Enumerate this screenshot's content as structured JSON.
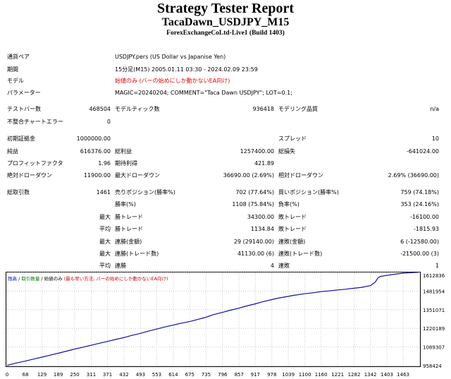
{
  "header": {
    "title": "Strategy Tester Report",
    "subtitle": "TacaDawn_USDJPY_M15",
    "server": "ForexExchangeCoLtd-Live1 (Build 1403)"
  },
  "settings": {
    "pair_label": "通貨ペア",
    "pair_value": "USDJPY.pers (US Dollar vs Japanise Yen)",
    "period_label": "期間",
    "period_value": "15分足(M15) 2005.01.11 03:30 - 2024.02.09 23:59",
    "model_label": "モデル",
    "model_value": "始値のみ (バーの始めにしか動かないEA向け)",
    "params_label": "パラメーター",
    "params_value": "MAGIC=20240204; COMMENT=\"Taca Dawn USDJPY\"; LOT=0.1;"
  },
  "stats": {
    "bars_label": "テストバー数",
    "bars_value": "468504",
    "ticks_label": "モデルティック数",
    "ticks_value": "936418",
    "quality_label": "モデリング品質",
    "quality_value": "n/a",
    "mismatch_label": "不整合チャートエラー",
    "mismatch_value": "0",
    "deposit_label": "初期証拠金",
    "deposit_value": "1000000.00",
    "spread_label": "スプレッド",
    "spread_value": "10",
    "net_label": "純益",
    "net_value": "616376.00",
    "gross_profit_label": "総利益",
    "gross_profit_value": "1257400.00",
    "gross_loss_label": "総損失",
    "gross_loss_value": "-641024.00",
    "pf_label": "プロフィットファクタ",
    "pf_value": "1.96",
    "expected_label": "期待利得",
    "expected_value": "421.89",
    "abs_dd_label": "絶対ドローダウン",
    "abs_dd_value": "11900.00",
    "max_dd_label": "最大ドローダウン",
    "max_dd_value": "36690.00 (2.69%)",
    "rel_dd_label": "相対ドローダウン",
    "rel_dd_value": "2.69% (36690.00)",
    "trades_label": "総取引数",
    "trades_value": "1461",
    "short_label": "売りポジション(勝率%)",
    "short_value": "702 (77.64%)",
    "long_label": "買いポジション(勝率%)",
    "long_value": "759 (74.18%)",
    "win_rate_label": "勝率(%)",
    "win_rate_value": "1108 (75.84%)",
    "loss_rate_label": "負率(%)",
    "loss_rate_value": "353 (24.16%)",
    "max1": "最大",
    "largest_win_label": "勝トレード",
    "largest_win_value": "34300.00",
    "largest_loss_label": "敗トレード",
    "largest_loss_value": "-16100.00",
    "avg1": "平均",
    "avg_win_label": "勝トレード",
    "avg_win_value": "1134.84",
    "avg_loss_label": "敗トレード",
    "avg_loss_value": "-1815.93",
    "max2": "最大",
    "consec_wins_label": "連勝(金額)",
    "consec_wins_value": "29 (29140.00)",
    "consec_losses_label": "連敗(金額)",
    "consec_losses_value": "6 (-12580.00)",
    "max3": "最大",
    "consec_profit_label": "連勝(トレード数)",
    "consec_profit_value": "41130.00 (6)",
    "consec_loss_label": "連敗(トレード数)",
    "consec_loss_value": "-21500.00 (3)",
    "avg2": "平均",
    "avg_consec_wins_label": "連勝",
    "avg_consec_wins_value": "4",
    "avg_consec_losses_label": "連敗",
    "avg_consec_losses_value": "1"
  },
  "chart_legend": {
    "balance": "残高",
    "sep1": " / ",
    "lot": "取引数量",
    "sep2": " / ",
    "mode": "始値のみ",
    "note": " (最も早い方法, バーの始めにしか動かないEA向け)",
    "balance_color": "#0000cc",
    "lot_color": "#008000",
    "note_color": "#cc0000"
  },
  "chart_data": {
    "type": "line",
    "x_ticks": [
      0,
      68,
      129,
      189,
      250,
      311,
      371,
      432,
      493,
      553,
      614,
      675,
      735,
      796,
      857,
      917,
      978,
      1039,
      1100,
      1160,
      1221,
      1282,
      1342,
      1403,
      1463
    ],
    "y_ticks": [
      "1612836",
      "1481954",
      "1351071",
      "1220189",
      "1089307",
      "958424"
    ],
    "ylim": [
      958424,
      1612836
    ],
    "xlim": [
      0,
      1520
    ],
    "series": [
      {
        "color": "#1010a0",
        "points": [
          [
            0,
            960000
          ],
          [
            30,
            975000
          ],
          [
            68,
            990000
          ],
          [
            100,
            1005000
          ],
          [
            129,
            1018000
          ],
          [
            160,
            1032000
          ],
          [
            189,
            1045000
          ],
          [
            220,
            1060000
          ],
          [
            250,
            1075000
          ],
          [
            280,
            1088000
          ],
          [
            311,
            1101000
          ],
          [
            340,
            1115000
          ],
          [
            371,
            1128000
          ],
          [
            400,
            1142000
          ],
          [
            432,
            1155000
          ],
          [
            460,
            1170000
          ],
          [
            493,
            1185000
          ],
          [
            520,
            1200000
          ],
          [
            553,
            1215000
          ],
          [
            580,
            1228000
          ],
          [
            614,
            1243000
          ],
          [
            640,
            1255000
          ],
          [
            675,
            1268000
          ],
          [
            700,
            1280000
          ],
          [
            735,
            1298000
          ],
          [
            760,
            1315000
          ],
          [
            796,
            1332000
          ],
          [
            820,
            1345000
          ],
          [
            857,
            1362000
          ],
          [
            880,
            1375000
          ],
          [
            917,
            1392000
          ],
          [
            940,
            1405000
          ],
          [
            978,
            1422000
          ],
          [
            1000,
            1432000
          ],
          [
            1039,
            1445000
          ],
          [
            1060,
            1452000
          ],
          [
            1100,
            1463000
          ],
          [
            1130,
            1470000
          ],
          [
            1160,
            1478000
          ],
          [
            1190,
            1483000
          ],
          [
            1221,
            1490000
          ],
          [
            1250,
            1495000
          ],
          [
            1282,
            1502000
          ],
          [
            1310,
            1508000
          ],
          [
            1342,
            1520000
          ],
          [
            1360,
            1545000
          ],
          [
            1370,
            1575000
          ],
          [
            1380,
            1585000
          ],
          [
            1403,
            1592000
          ],
          [
            1430,
            1600000
          ],
          [
            1463,
            1608000
          ],
          [
            1500,
            1612000
          ],
          [
            1520,
            1614000
          ]
        ]
      }
    ]
  }
}
